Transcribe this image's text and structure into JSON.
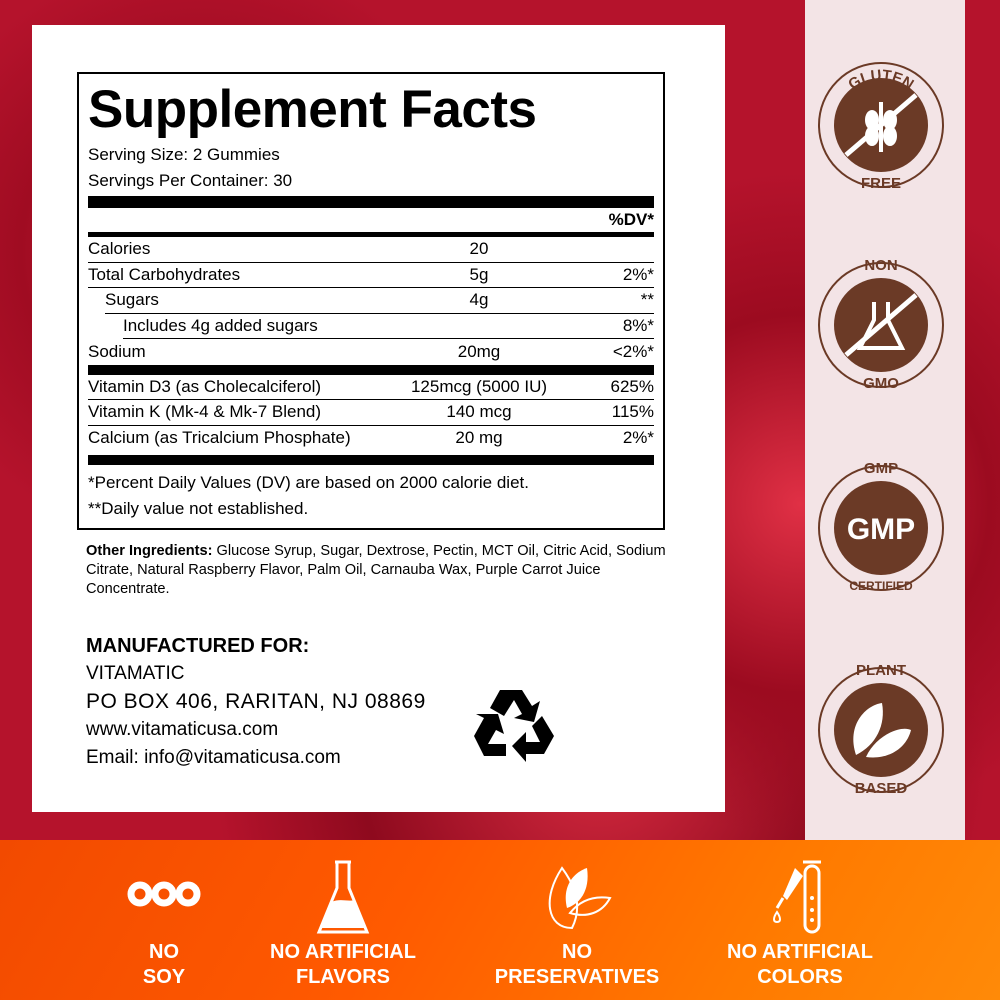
{
  "facts": {
    "title": "Supplement Facts",
    "serving_size": "Serving Size: 2 Gummies",
    "servings_per_container": "Servings Per Container: 30",
    "dv_header": "%DV*",
    "rows": [
      {
        "name": "Calories",
        "amount": "20",
        "dv": ""
      },
      {
        "name": "Total Carbohydrates",
        "amount": "5g",
        "dv": "2%*"
      },
      {
        "name": "Sugars",
        "amount": "4g",
        "dv": "**"
      },
      {
        "name": "Includes 4g added sugars",
        "amount": "",
        "dv": "8%*"
      },
      {
        "name": "Sodium",
        "amount": "20mg",
        "dv": "<2%*"
      }
    ],
    "vitamins": [
      {
        "name": "Vitamin D3 (as Cholecalciferol)",
        "amount": "125mcg (5000 IU)",
        "dv": "625%"
      },
      {
        "name": "Vitamin K (Mk-4 & Mk-7 Blend)",
        "amount": "140 mcg",
        "dv": "115%"
      },
      {
        "name": "Calcium (as Tricalcium Phosphate)",
        "amount": "20 mg",
        "dv": "2%*"
      }
    ],
    "footnote1": "*Percent Daily Values (DV) are based on 2000 calorie diet.",
    "footnote2": "**Daily value not established."
  },
  "other_ingredients": {
    "label": "Other Ingredients:",
    "text": " Glucose Syrup, Sugar, Dextrose, Pectin, MCT Oil, Citric Acid, Sodium Citrate, Natural Raspberry Flavor, Palm Oil, Carnauba Wax, Purple Carrot Juice Concentrate."
  },
  "manufacturer": {
    "heading": "MANUFACTURED FOR:",
    "name": "VITAMATIC",
    "address": "PO BOX 406, RARITAN, NJ 08869",
    "website": "www.vitamaticusa.com",
    "email": "Email: info@vitamaticusa.com"
  },
  "badges": [
    {
      "top": "GLUTEN",
      "bottom": "FREE",
      "icon": "wheat-crossed-icon"
    },
    {
      "top": "NON",
      "bottom": "GMO",
      "icon": "flask-crossed-icon"
    },
    {
      "top": "GMP",
      "center": "GMP",
      "bottom": "CERTIFIED",
      "icon": "gmp-icon"
    },
    {
      "top": "PLANT",
      "bottom": "BASED",
      "icon": "leaves-icon"
    }
  ],
  "features": [
    {
      "line1": "NO",
      "line2": "SOY",
      "icon": "soybean-icon"
    },
    {
      "line1": "NO ARTIFICIAL",
      "line2": "FLAVORS",
      "icon": "flask-icon"
    },
    {
      "line1": "NO",
      "line2": "PRESERVATIVES",
      "icon": "leaf-icon"
    },
    {
      "line1": "NO ARTIFICIAL",
      "line2": "COLORS",
      "icon": "dropper-icon"
    }
  ],
  "colors": {
    "badge_brown": "#6b3a26",
    "orange": "#ff5f00",
    "raspberry": "#b5132c"
  }
}
